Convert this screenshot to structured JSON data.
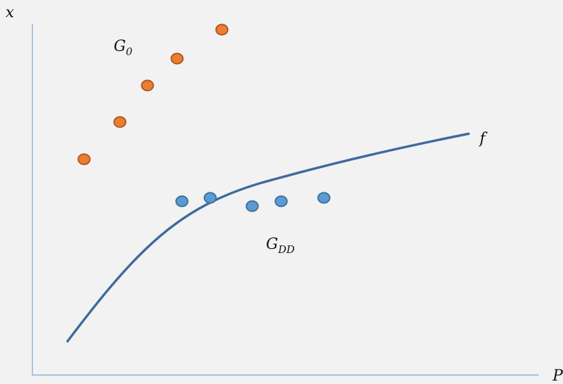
{
  "axes": {
    "y_label": "x",
    "x_label": "P",
    "color": "#8db3e2"
  },
  "groups": [
    {
      "base": "G",
      "subscript": "0",
      "points": 5,
      "fill": "#ed7d31",
      "stroke": "#ae5a21"
    },
    {
      "base": "G",
      "subscript": "DD",
      "points": 5,
      "fill": "#5b9bd5",
      "stroke": "#41719c"
    }
  ],
  "curve": {
    "label": "f",
    "color": "#3f6a9e"
  }
}
